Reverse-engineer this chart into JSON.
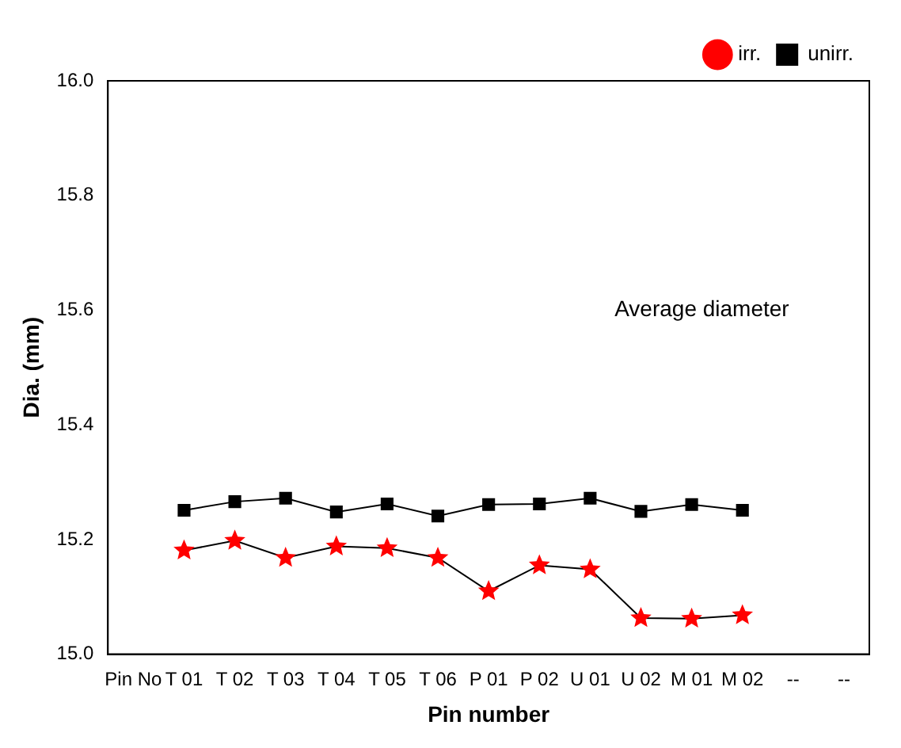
{
  "chart_data": {
    "type": "line",
    "xlabel": "Pin number",
    "ylabel": "Dia. (mm)",
    "categories": [
      "Pin No",
      "T 01",
      "T 02",
      "T 03",
      "T 04",
      "T 05",
      "T 06",
      "P 01",
      "P 02",
      "U 01",
      "U 02",
      "M 01",
      "M 02",
      "--",
      "--"
    ],
    "series": [
      {
        "name": "irr.",
        "color": "#ff0000",
        "marker": "star",
        "values": [
          null,
          15.181,
          15.198,
          15.168,
          15.188,
          15.185,
          15.168,
          15.11,
          15.155,
          15.148,
          15.063,
          15.062,
          15.068,
          null,
          null
        ]
      },
      {
        "name": "unirr.",
        "color": "#000000",
        "marker": "square",
        "values": [
          null,
          15.251,
          15.266,
          15.272,
          15.248,
          15.262,
          15.241,
          15.261,
          15.262,
          15.272,
          15.249,
          15.261,
          15.251,
          null,
          null
        ]
      }
    ],
    "ylim": [
      15.0,
      16.0
    ],
    "yticks": [
      {
        "value": 15.0,
        "label": "15.0"
      },
      {
        "value": 15.2,
        "label": "15.2"
      },
      {
        "value": 15.4,
        "label": "15.4"
      },
      {
        "value": 15.6,
        "label": "15.6"
      },
      {
        "value": 15.8,
        "label": "15.8"
      },
      {
        "value": 16.0,
        "label": "16.0"
      }
    ],
    "grid": false,
    "legend": "top right",
    "line_style": "solid",
    "annotations": [
      "Average diameter"
    ]
  }
}
